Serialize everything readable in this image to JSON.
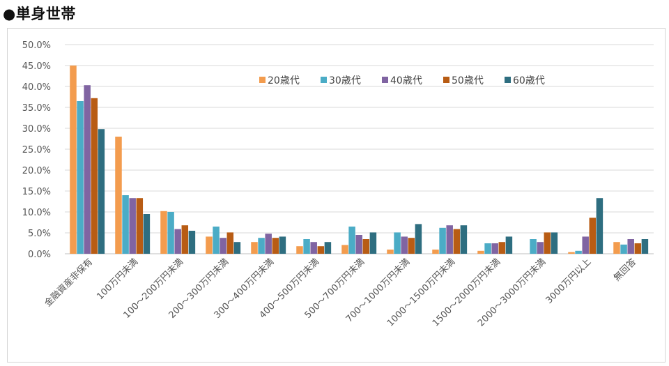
{
  "heading": "●単身世帯",
  "chart_data": {
    "type": "bar",
    "categories": [
      "金融資産非保有",
      "100万円未満",
      "100～200万円未満",
      "200～300万円未満",
      "300～400万円未満",
      "400～500万円未満",
      "500～700万円未満",
      "700～1000万円未満",
      "1000～1500万円未満",
      "1500～2000万円未満",
      "2000～3000万円未満",
      "3000万円以上",
      "無回答"
    ],
    "series": [
      {
        "name": "20歳代",
        "color": "#f39c4e",
        "values": [
          45.0,
          28.0,
          10.2,
          4.1,
          2.8,
          1.8,
          2.1,
          1.0,
          1.0,
          0.7,
          0.0,
          0.4,
          2.8
        ]
      },
      {
        "name": "30歳代",
        "color": "#4bacc6",
        "values": [
          36.5,
          14.0,
          10.0,
          6.5,
          3.8,
          3.5,
          6.5,
          5.1,
          6.2,
          2.5,
          3.5,
          0.7,
          2.2
        ]
      },
      {
        "name": "40歳代",
        "color": "#8064a2",
        "values": [
          40.3,
          13.3,
          5.9,
          3.8,
          4.8,
          2.8,
          4.5,
          4.1,
          6.8,
          2.5,
          2.8,
          4.1,
          3.5
        ]
      },
      {
        "name": "50歳代",
        "color": "#b85c14",
        "values": [
          37.2,
          13.3,
          6.8,
          5.1,
          3.8,
          1.8,
          3.5,
          3.8,
          5.9,
          2.8,
          5.1,
          8.6,
          2.5
        ]
      },
      {
        "name": "60歳代",
        "color": "#2e6e80",
        "values": [
          29.8,
          9.5,
          5.5,
          2.8,
          4.1,
          2.8,
          5.1,
          7.1,
          6.8,
          4.1,
          5.1,
          13.3,
          3.5
        ]
      }
    ],
    "yticks": [
      "0.0%",
      "5.0%",
      "10.0%",
      "15.0%",
      "20.0%",
      "25.0%",
      "30.0%",
      "35.0%",
      "40.0%",
      "45.0%",
      "50.0%"
    ],
    "ylim": [
      0,
      50
    ],
    "grid": true,
    "legend_position": "top-center"
  }
}
